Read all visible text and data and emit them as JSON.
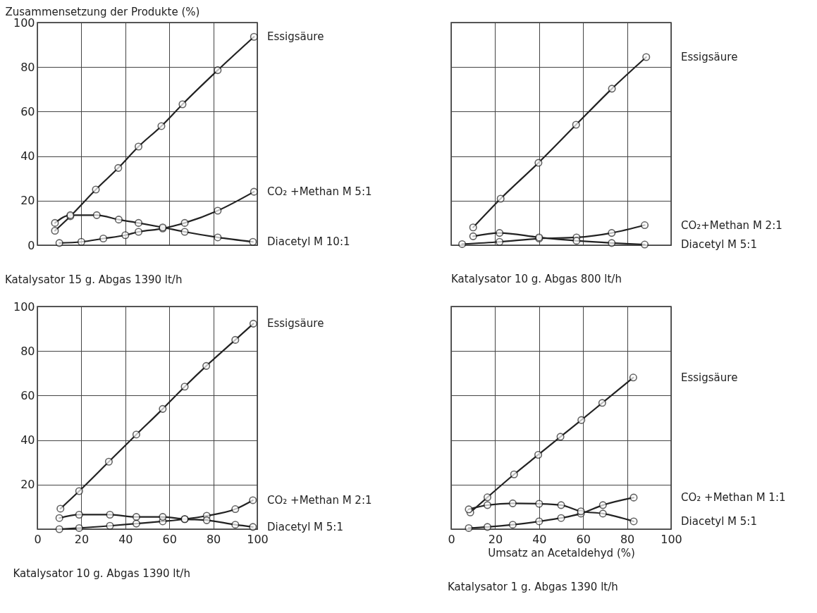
{
  "chart_data": [
    {
      "type": "line",
      "ylabel": "Zusammensetzung der Produkte (%)",
      "subtitle": "Katalysator 15 g. Abgas 1390 lt/h",
      "xlim": [
        0,
        100
      ],
      "ylim": [
        0,
        100
      ],
      "xticks": [
        0,
        20,
        40,
        60,
        80,
        100
      ],
      "yticks": [
        0,
        20,
        40,
        60,
        80,
        100
      ],
      "grid": true,
      "tick_labels": "y",
      "marker": "circle",
      "series": [
        {
          "name": "Essigsäure",
          "color": "#222222",
          "x": [
            8,
            15,
            26.6,
            36.8,
            46,
            56.4,
            66,
            82,
            98.5
          ],
          "values": [
            6.5,
            13,
            25,
            34.7,
            44.3,
            53.5,
            63.3,
            78.6,
            93.6
          ]
        },
        {
          "name": "CO₂ +Methan M 5:1",
          "color": "#222222",
          "x": [
            10,
            20,
            30,
            40,
            46,
            57,
            67,
            82,
            98.5
          ],
          "values": [
            1,
            1.5,
            3,
            4.5,
            6,
            7.5,
            10,
            15.5,
            24
          ]
        },
        {
          "name": "Diacetyl  M 10:1",
          "color": "#222222",
          "x": [
            8,
            15,
            27,
            37,
            46,
            57,
            67,
            82,
            98
          ],
          "values": [
            10,
            13.5,
            13.5,
            11.5,
            10,
            8,
            6,
            3.5,
            1.5
          ]
        }
      ]
    },
    {
      "type": "line",
      "subtitle": "Katalysator 10 g. Abgas  800 lt/h",
      "xlim": [
        0,
        100
      ],
      "ylim": [
        0,
        100
      ],
      "xticks": [
        0,
        20,
        40,
        60,
        80,
        100
      ],
      "yticks": [
        0,
        20,
        40,
        60,
        80,
        100
      ],
      "grid": true,
      "tick_labels": false,
      "marker": "circle",
      "series": [
        {
          "name": "Essigsäure",
          "color": "#222222",
          "x": [
            10,
            22.5,
            39.7,
            56.8,
            73.1,
            88.7
          ],
          "values": [
            8,
            20.9,
            37,
            54.1,
            70.3,
            84.5
          ]
        },
        {
          "name": "CO₂+Methan  M 2:1",
          "color": "#222222",
          "x": [
            5,
            22,
            40,
            57,
            73,
            88
          ],
          "values": [
            0.5,
            1.5,
            3,
            3.5,
            5.5,
            9
          ]
        },
        {
          "name": "Diacetyl          M 5:1",
          "color": "#222222",
          "x": [
            10,
            22,
            40,
            57,
            73,
            88
          ],
          "values": [
            4,
            5.5,
            3.5,
            2,
            1,
            0.3
          ]
        }
      ]
    },
    {
      "type": "line",
      "subtitle": "Katalysator 10 g. Abgas 1390 lt/h",
      "xlim": [
        0,
        100
      ],
      "ylim": [
        0,
        100
      ],
      "xticks": [
        0,
        20,
        40,
        60,
        80,
        100
      ],
      "yticks": [
        {
          "value": 0,
          "label": null
        },
        20,
        40,
        60,
        80,
        100
      ],
      "grid": true,
      "marker": "circle",
      "series": [
        {
          "name": "Essigsäure",
          "color": "#222222",
          "x": [
            10.5,
            19,
            32.5,
            45,
            57,
            67,
            76.8,
            90,
            98.2
          ],
          "values": [
            9.2,
            17.1,
            30.3,
            42.5,
            54,
            64,
            73.3,
            85,
            92.3
          ]
        },
        {
          "name": "CO₂ +Methan  M 2:1",
          "color": "#222222",
          "x": [
            10,
            19,
            33,
            45,
            57,
            67,
            77,
            90,
            98
          ],
          "values": [
            0,
            0.5,
            1.5,
            2.5,
            3.5,
            4.5,
            6,
            9,
            13
          ]
        },
        {
          "name": "Diacetyl        M 5:1",
          "color": "#222222",
          "x": [
            10,
            19,
            33,
            45,
            57,
            67,
            77,
            90,
            98
          ],
          "values": [
            5,
            6.5,
            6.5,
            5.5,
            5.5,
            4.5,
            4,
            2,
            1
          ]
        }
      ]
    },
    {
      "type": "line",
      "xlabel": "Umsatz an Acetaldehyd (%)",
      "subtitle": "Katalysator 1 g. Abgas 1390 lt/h",
      "xlim": [
        0,
        100
      ],
      "ylim": [
        0,
        100
      ],
      "xticks": [
        0,
        20,
        40,
        60,
        80,
        100
      ],
      "yticks": [
        0,
        20,
        40,
        60,
        80,
        100
      ],
      "grid": true,
      "tick_labels": "x",
      "marker": "circle",
      "series": [
        {
          "name": "Essigsäure",
          "color": "#222222",
          "x": [
            8.7,
            16.5,
            28.6,
            39.6,
            49.7,
            59.2,
            68.7,
            82.8
          ],
          "values": [
            7.5,
            14.3,
            24.6,
            33.4,
            41.5,
            49,
            56.7,
            68.1
          ]
        },
        {
          "name": "CO₂ +Methan  M 1:1",
          "color": "#222222",
          "x": [
            8,
            16.5,
            28,
            40,
            50,
            59,
            69,
            83
          ],
          "values": [
            0.5,
            1,
            2,
            3.5,
            5,
            7,
            10.8,
            14.2
          ]
        },
        {
          "name": "Diacetyl        M 5:1",
          "color": "#222222",
          "x": [
            8,
            16.5,
            28,
            40,
            50,
            59,
            69,
            83
          ],
          "values": [
            8.9,
            10.8,
            11.6,
            11.4,
            10.8,
            8,
            7,
            3.5
          ]
        }
      ]
    }
  ]
}
